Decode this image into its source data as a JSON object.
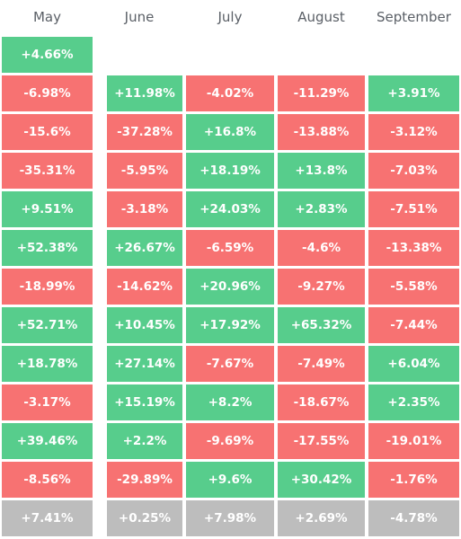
{
  "chart_data": {
    "type": "table",
    "columns": [
      "May",
      "June",
      "July",
      "August",
      "September"
    ],
    "rows": [
      [
        "+4.66%",
        null,
        null,
        null,
        null
      ],
      [
        "-6.98%",
        "+11.98%",
        "-4.02%",
        "-11.29%",
        "+3.91%"
      ],
      [
        "-15.6%",
        "-37.28%",
        "+16.8%",
        "-13.88%",
        "-3.12%"
      ],
      [
        "-35.31%",
        "-5.95%",
        "+18.19%",
        "+13.8%",
        "-7.03%"
      ],
      [
        "+9.51%",
        "-3.18%",
        "+24.03%",
        "+2.83%",
        "-7.51%"
      ],
      [
        "+52.38%",
        "+26.67%",
        "-6.59%",
        "-4.6%",
        "-13.38%"
      ],
      [
        "-18.99%",
        "-14.62%",
        "+20.96%",
        "-9.27%",
        "-5.58%"
      ],
      [
        "+52.71%",
        "+10.45%",
        "+17.92%",
        "+65.32%",
        "-7.44%"
      ],
      [
        "+18.78%",
        "+27.14%",
        "-7.67%",
        "-7.49%",
        "+6.04%"
      ],
      [
        "-3.17%",
        "+15.19%",
        "+8.2%",
        "-18.67%",
        "+2.35%"
      ],
      [
        "+39.46%",
        "+2.2%",
        "-9.69%",
        "-17.55%",
        "-19.01%"
      ],
      [
        "-8.56%",
        "-29.89%",
        "+9.6%",
        "+30.42%",
        "-1.76%"
      ]
    ],
    "summary_row": [
      "+7.41%",
      "+0.25%",
      "+7.98%",
      "+2.69%",
      "-4.78%"
    ],
    "colors": {
      "positive": "#57cd8c",
      "negative": "#f77272",
      "summary": "#bdbdbd",
      "header_text": "#5a5f66"
    }
  }
}
